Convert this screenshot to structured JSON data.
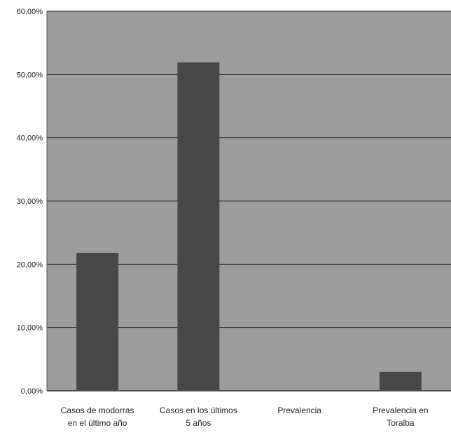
{
  "chart_data": {
    "type": "bar",
    "categories": [
      [
        "Casos de modorras",
        "en el último año"
      ],
      [
        "Casos en los últimos",
        "5 años"
      ],
      [
        "Prevalencia"
      ],
      [
        "Prevalencia en",
        "Toralba"
      ]
    ],
    "values": [
      21.8,
      51.9,
      0,
      3.0
    ],
    "y_ticks": [
      "0,00%",
      "10,00%",
      "20,00%",
      "30,00%",
      "40,00%",
      "50,00%",
      "60,00%"
    ],
    "ylim": [
      0,
      60
    ],
    "grid": true,
    "legend": "none",
    "colors": {
      "plot_bg": "#9c9c9c",
      "bar": "#474747",
      "grid": "#2b2b2b",
      "text": "#222222"
    }
  }
}
